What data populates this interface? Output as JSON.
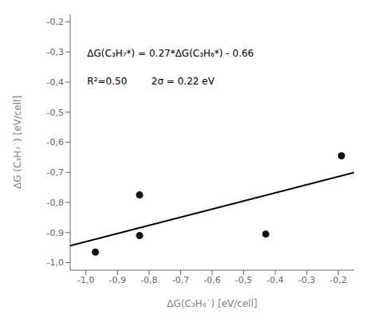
{
  "chart_data": {
    "type": "scatter",
    "xlabel": "ΔG(C₃H₆˙) [eV/cell]",
    "ylabel": "ΔG (C₃H₇˙) [eV/cell]",
    "annotations": [
      "ΔG(C₃H₇*) = 0.27*ΔG(C₃H₆*) - 0.66",
      "R²=0.50        2σ = 0.22 eV"
    ],
    "series": [
      {
        "type": "line",
        "color": "#000000",
        "x": [
          -1.05,
          -0.15
        ],
        "values": [
          -0.9435,
          -0.7005
        ]
      },
      {
        "type": "scatter",
        "color": "#111111",
        "x": [
          -0.97,
          -0.83,
          -0.83,
          -0.43,
          -0.19
        ],
        "values": [
          -0.965,
          -0.91,
          -0.775,
          -0.905,
          -0.645
        ]
      }
    ],
    "xlim": [
      -1.05,
      -0.15
    ],
    "ylim": [
      -1.025,
      -0.175
    ],
    "xticks": [
      {
        "value": -1.0,
        "label": "-1,0"
      },
      {
        "value": -0.9,
        "label": "-0,9"
      },
      {
        "value": -0.8,
        "label": "-0,8"
      },
      {
        "value": -0.7,
        "label": "-0,7"
      },
      {
        "value": -0.6,
        "label": "-0,6"
      },
      {
        "value": -0.5,
        "label": "-0,5"
      },
      {
        "value": -0.4,
        "label": "-0,4"
      },
      {
        "value": -0.3,
        "label": "-0,3"
      },
      {
        "value": -0.2,
        "label": "-0,2"
      }
    ],
    "yticks": [
      {
        "value": -1.0,
        "label": "-1,0"
      },
      {
        "value": -0.9,
        "label": "-0,9"
      },
      {
        "value": -0.8,
        "label": "-0,8"
      },
      {
        "value": -0.7,
        "label": "-0,7"
      },
      {
        "value": -0.6,
        "label": "-0,6"
      },
      {
        "value": -0.5,
        "label": "-0,5"
      },
      {
        "value": -0.4,
        "label": "-0,4"
      },
      {
        "value": -0.3,
        "label": "-0,3"
      },
      {
        "value": -0.2,
        "label": "-0,2"
      }
    ],
    "grid": false
  }
}
